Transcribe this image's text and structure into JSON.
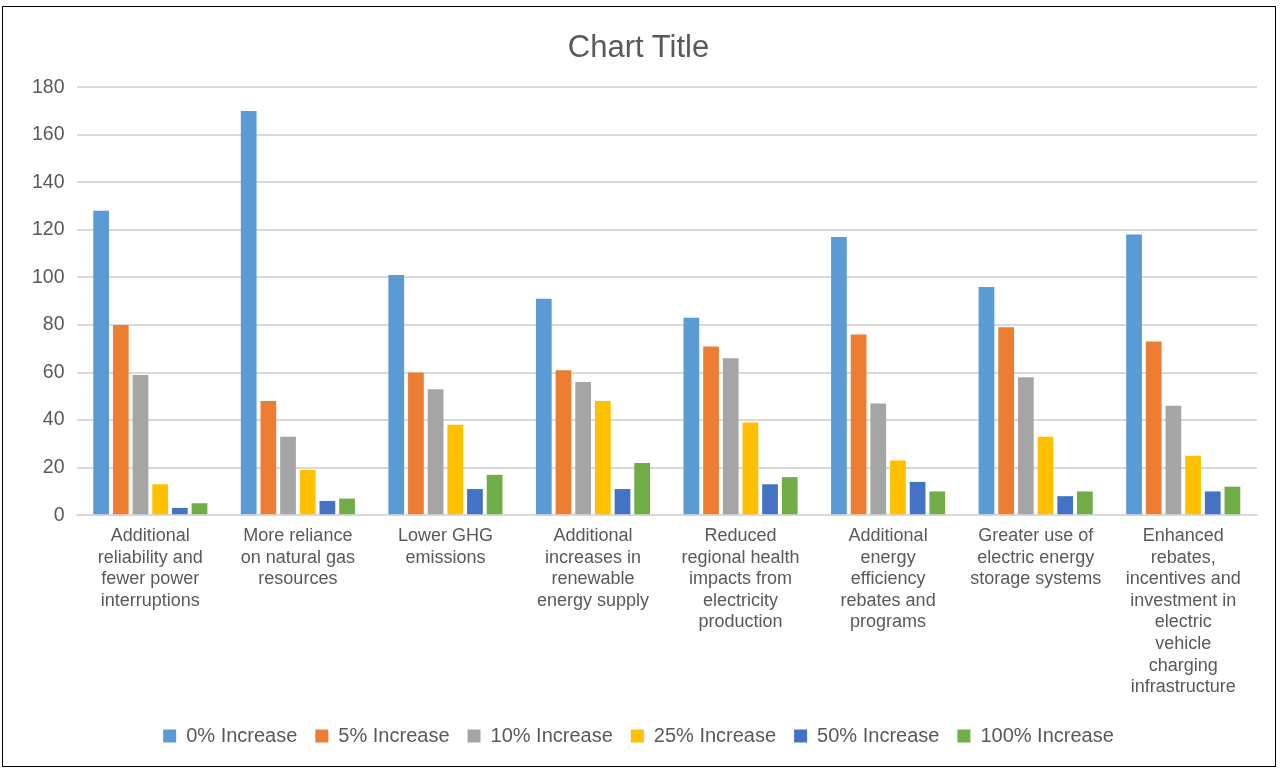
{
  "chart_data": {
    "type": "bar",
    "title": "Chart Title",
    "categories": [
      "Additional reliability and fewer power interruptions",
      "More reliance on natural gas resources",
      "Lower GHG emissions",
      "Additional increases in renewable energy supply",
      "Reduced regional health impacts from electricity production",
      "Additional energy efficiency rebates and programs",
      "Greater use of electric energy storage systems",
      "Enhanced rebates, incentives and investment in electric vehicle charging infrastructure"
    ],
    "series": [
      {
        "name": "0% Increase",
        "color": "#5b9bd5",
        "values": [
          128,
          170,
          101,
          91,
          83,
          117,
          96,
          118
        ]
      },
      {
        "name": "5% Increase",
        "color": "#ed7d31",
        "values": [
          80,
          48,
          60,
          61,
          71,
          76,
          79,
          73
        ]
      },
      {
        "name": "10% Increase",
        "color": "#a5a5a5",
        "values": [
          59,
          33,
          53,
          56,
          66,
          47,
          58,
          46
        ]
      },
      {
        "name": "25% Increase",
        "color": "#ffc000",
        "values": [
          13,
          19,
          38,
          48,
          39,
          23,
          33,
          25
        ]
      },
      {
        "name": "50% Increase",
        "color": "#4472c4",
        "values": [
          3,
          6,
          11,
          11,
          13,
          14,
          8,
          10
        ]
      },
      {
        "name": "100% Increase",
        "color": "#70ad47",
        "values": [
          5,
          7,
          17,
          22,
          16,
          10,
          10,
          12
        ]
      }
    ],
    "ylim": [
      0,
      180
    ],
    "yticks": [
      0,
      20,
      40,
      60,
      80,
      100,
      120,
      140,
      160,
      180
    ],
    "grid": "y",
    "legend": "bottom"
  }
}
